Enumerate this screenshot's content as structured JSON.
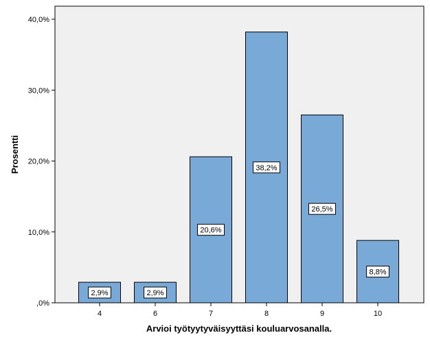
{
  "chart_data": {
    "type": "bar",
    "title": "",
    "xlabel": "Arvioi työtyytyväisyyttäsi kouluarvosanalla.",
    "ylabel": "Prosentti",
    "categories": [
      "4",
      "6",
      "7",
      "8",
      "9",
      "10"
    ],
    "values": [
      2.9,
      2.9,
      20.6,
      38.2,
      26.5,
      8.8
    ],
    "data_labels": [
      "2,9%",
      "2,9%",
      "20,6%",
      "38,2%",
      "26,5%",
      "8,8%"
    ],
    "ylim": [
      0,
      42
    ],
    "yticks": [
      0,
      10,
      20,
      30,
      40
    ],
    "ytick_labels": [
      ",0%",
      "10,0%",
      "20,0%",
      "30,0%",
      "40,0%"
    ],
    "grid": false,
    "colors": {
      "plot_background": "#f0f0f0",
      "bar_fill": "#79a9d7",
      "bar_stroke": "#000000",
      "label_box": "#ffffff"
    }
  }
}
